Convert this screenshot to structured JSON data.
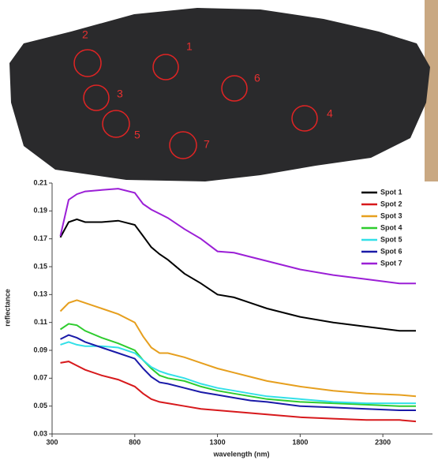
{
  "photo": {
    "spot_labels": [
      "1",
      "2",
      "3",
      "4",
      "5",
      "6",
      "7"
    ]
  },
  "chart_data": {
    "type": "line",
    "xlabel": "wavelength (nm)",
    "ylabel": "reflectance",
    "x": [
      350,
      400,
      450,
      500,
      600,
      700,
      800,
      850,
      900,
      950,
      1000,
      1100,
      1200,
      1300,
      1400,
      1500,
      1600,
      1800,
      2000,
      2200,
      2400,
      2500
    ],
    "xlim": [
      300,
      2600
    ],
    "xticks": [
      300,
      800,
      1300,
      1800,
      2300
    ],
    "ylim": [
      0.03,
      0.21
    ],
    "yticks": [
      0.03,
      0.05,
      0.07,
      0.09,
      0.11,
      0.13,
      0.15,
      0.17,
      0.19,
      0.21
    ],
    "grid": false,
    "legend": "upper right",
    "series": [
      {
        "name": "Spot 1",
        "color": "#000000",
        "values": [
          0.171,
          0.182,
          0.184,
          0.182,
          0.182,
          0.183,
          0.18,
          0.172,
          0.164,
          0.159,
          0.155,
          0.145,
          0.138,
          0.13,
          0.128,
          0.124,
          0.12,
          0.114,
          0.11,
          0.107,
          0.104,
          0.104
        ]
      },
      {
        "name": "Spot 2",
        "color": "#d7191c",
        "values": [
          0.081,
          0.082,
          0.079,
          0.076,
          0.072,
          0.069,
          0.064,
          0.059,
          0.055,
          0.053,
          0.052,
          0.05,
          0.048,
          0.047,
          0.046,
          0.045,
          0.044,
          0.042,
          0.041,
          0.04,
          0.04,
          0.039
        ]
      },
      {
        "name": "Spot 3",
        "color": "#e69f1e",
        "values": [
          0.118,
          0.124,
          0.126,
          0.124,
          0.12,
          0.116,
          0.11,
          0.1,
          0.092,
          0.088,
          0.088,
          0.085,
          0.081,
          0.077,
          0.074,
          0.071,
          0.068,
          0.064,
          0.061,
          0.059,
          0.058,
          0.057
        ]
      },
      {
        "name": "Spot 4",
        "color": "#2ecc2e",
        "values": [
          0.105,
          0.109,
          0.108,
          0.104,
          0.099,
          0.095,
          0.09,
          0.083,
          0.077,
          0.072,
          0.07,
          0.068,
          0.064,
          0.061,
          0.059,
          0.057,
          0.055,
          0.053,
          0.052,
          0.051,
          0.05,
          0.05
        ]
      },
      {
        "name": "Spot 5",
        "color": "#33e0e8",
        "values": [
          0.094,
          0.096,
          0.094,
          0.093,
          0.093,
          0.092,
          0.088,
          0.083,
          0.078,
          0.075,
          0.073,
          0.07,
          0.066,
          0.063,
          0.061,
          0.059,
          0.057,
          0.055,
          0.053,
          0.052,
          0.052,
          0.052
        ]
      },
      {
        "name": "Spot 6",
        "color": "#1a1aa8",
        "values": [
          0.098,
          0.101,
          0.099,
          0.096,
          0.092,
          0.088,
          0.084,
          0.077,
          0.071,
          0.067,
          0.066,
          0.063,
          0.06,
          0.058,
          0.056,
          0.054,
          0.053,
          0.05,
          0.049,
          0.048,
          0.047,
          0.047
        ]
      },
      {
        "name": "Spot 7",
        "color": "#9b1fd6",
        "values": [
          0.172,
          0.198,
          0.202,
          0.204,
          0.205,
          0.206,
          0.203,
          0.195,
          0.191,
          0.188,
          0.185,
          0.177,
          0.17,
          0.161,
          0.16,
          0.157,
          0.154,
          0.148,
          0.144,
          0.141,
          0.138,
          0.138
        ]
      }
    ]
  }
}
